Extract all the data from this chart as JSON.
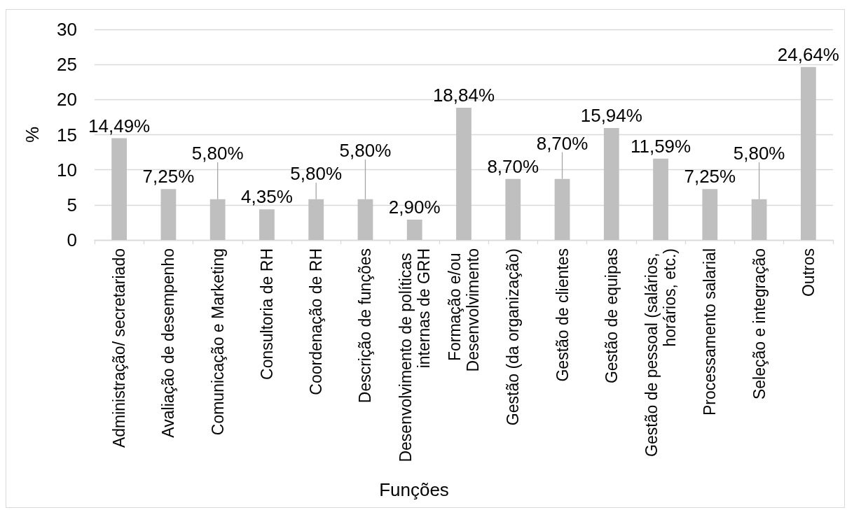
{
  "chart_data": {
    "type": "bar",
    "xlabel": "Funções",
    "ylabel": "%",
    "categories": [
      "Administração/ secretariado",
      "Avaliação de desempenho",
      "Comunicação e Marketing",
      "Consultoria de RH",
      "Coordenação de RH",
      "Descrição de funções",
      "Desenvolvimento de políticas internas de GRH",
      "Formação e/ou Desenvolvimento",
      "Gestão (da organização)",
      "Gestão de clientes",
      "Gestão de equipas",
      "Gestão de pessoal (salários, horários, etc.)",
      "Processamento salarial",
      "Seleção e integração",
      "Outros"
    ],
    "values": [
      14.49,
      7.25,
      5.8,
      4.35,
      5.8,
      5.8,
      2.9,
      18.84,
      8.7,
      8.7,
      15.94,
      11.59,
      7.25,
      5.8,
      24.64
    ],
    "value_labels": [
      "14,49%",
      "7,25%",
      "5,80%",
      "4,35%",
      "5,80%",
      "5,80%",
      "2,90%",
      "18,84%",
      "8,70%",
      "8,70%",
      "15,94%",
      "11,59%",
      "7,25%",
      "5,80%",
      "24,64%"
    ],
    "color": "#bfbfbf",
    "ylim": [
      0,
      30
    ],
    "yticks": [
      0,
      5,
      10,
      15,
      20,
      25,
      30
    ],
    "grid": "y"
  }
}
